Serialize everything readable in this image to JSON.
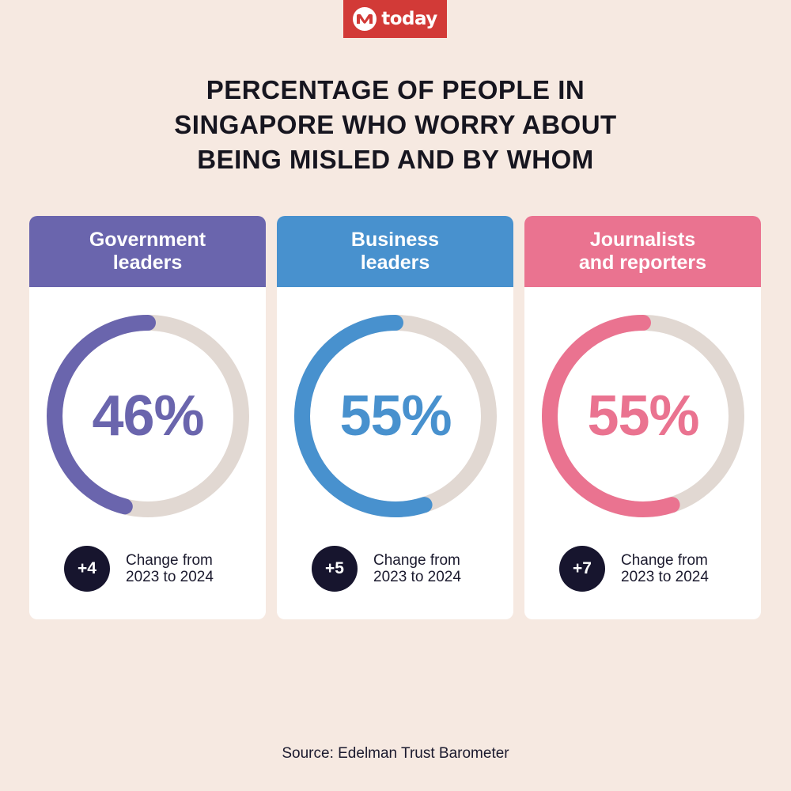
{
  "brand": {
    "logo_text": "today",
    "color": "#d23a37"
  },
  "title_lines": [
    "PERCENTAGE OF PEOPLE IN",
    "SINGAPORE WHO WORRY ABOUT",
    "BEING MISLED AND BY WHOM"
  ],
  "chart_data": {
    "type": "pie",
    "variant": "donut",
    "items": [
      {
        "name_lines": [
          "Government",
          "leaders"
        ],
        "value": 46,
        "label": "46%",
        "change": "+4",
        "change_lines": [
          "Change from",
          "2023 to 2024"
        ],
        "color": "#6a65ad"
      },
      {
        "name_lines": [
          "Business",
          "leaders"
        ],
        "value": 55,
        "label": "55%",
        "change": "+5",
        "change_lines": [
          "Change from",
          "2023 to 2024"
        ],
        "color": "#4891ce"
      },
      {
        "name_lines": [
          "Journalists",
          "and reporters"
        ],
        "value": 55,
        "label": "55%",
        "change": "+7",
        "change_lines": [
          "Change from",
          "2023 to 2024"
        ],
        "color": "#ea7390"
      }
    ],
    "track_color": "#e1d8d2",
    "badge_color": "#17152e"
  },
  "source": "Source: Edelman Trust Barometer"
}
